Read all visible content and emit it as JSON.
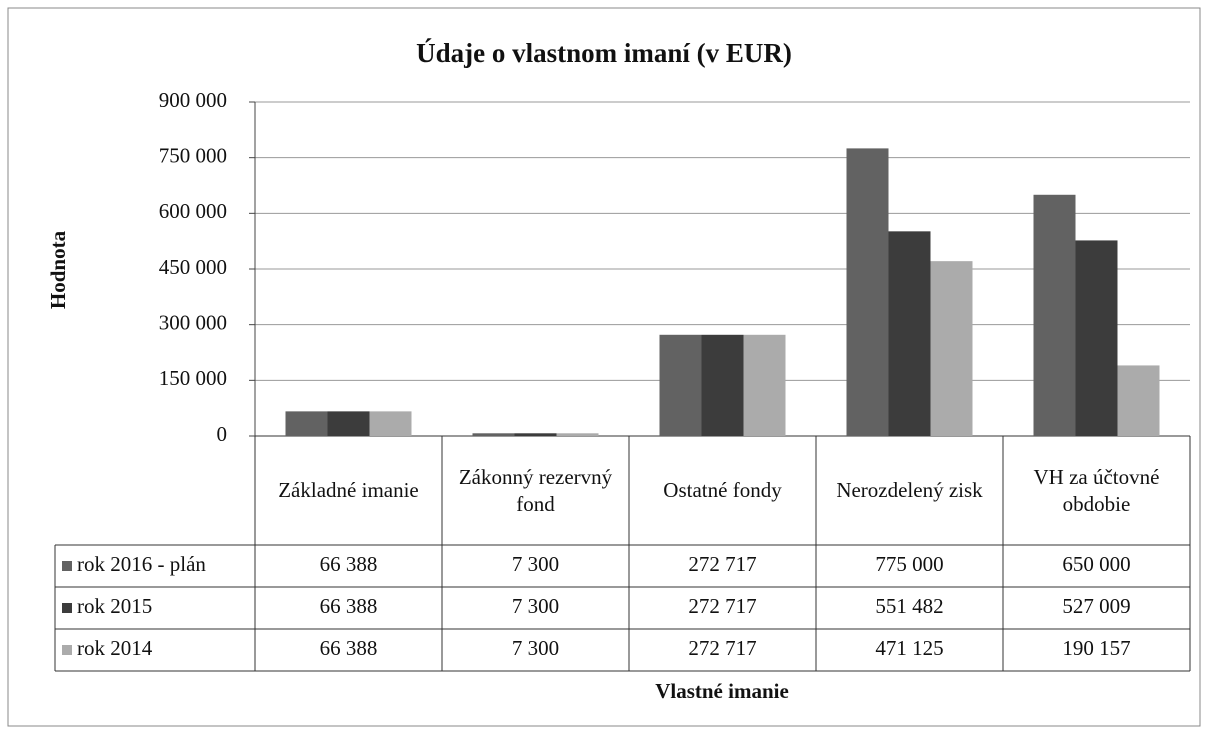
{
  "chart_data": {
    "type": "bar",
    "title": "Údaje o vlastnom imaní (v EUR)",
    "y_label": "Hodnota",
    "x_label": "Vlastné imanie",
    "categories": [
      "Základné imanie",
      "Zákonný rezervný fond",
      "Ostatné fondy",
      "Nerozdelený zisk",
      "VH za účtovné obdobie"
    ],
    "series": [
      {
        "name": "rok 2016 - plán",
        "color": "#626262",
        "values": [
          66388,
          7300,
          272717,
          775000,
          650000
        ],
        "value_labels": [
          "66 388",
          "7 300",
          "272 717",
          "775 000",
          "650 000"
        ]
      },
      {
        "name": "rok 2015",
        "color": "#3c3c3c",
        "values": [
          66388,
          7300,
          272717,
          551482,
          527009
        ],
        "value_labels": [
          "66 388",
          "7 300",
          "272 717",
          "551 482",
          "527 009"
        ]
      },
      {
        "name": "rok 2014",
        "color": "#ababab",
        "values": [
          66388,
          7300,
          272717,
          471125,
          190157
        ],
        "value_labels": [
          "66 388",
          "7 300",
          "272 717",
          "471 125",
          "190 157"
        ]
      }
    ],
    "ylim": [
      0,
      900000
    ],
    "yticks": [
      0,
      {
        "value": 150000,
        "label": "150 000"
      },
      {
        "value": 300000,
        "label": "300 000"
      },
      {
        "value": 450000,
        "label": "450 000"
      },
      {
        "value": 600000,
        "label": "600 000"
      },
      {
        "value": 750000,
        "label": "750 000"
      },
      {
        "value": 900000,
        "label": "900 000"
      }
    ],
    "grid": true
  }
}
